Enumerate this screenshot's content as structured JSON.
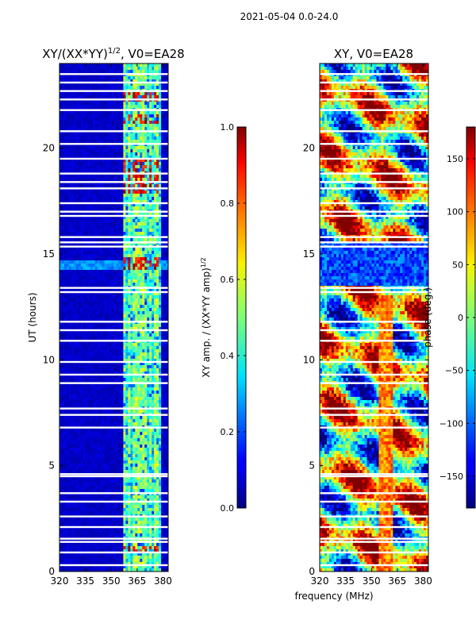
{
  "figure": {
    "suptitle": "2021-05-04 0.0-24.0",
    "xlabel": "frequency (MHz)"
  },
  "chart_data": [
    {
      "type": "heatmap",
      "title": "XY/(XX*YY)",
      "title_exponent": "1/2",
      "title_suffix": ", V0=EA28",
      "xlabel": "frequency (MHz)",
      "ylabel": "UT (hours)",
      "xlim": [
        320,
        383
      ],
      "ylim": [
        0,
        24
      ],
      "xticks": [
        320,
        335,
        350,
        365,
        380
      ],
      "yticks": [
        0,
        5,
        10,
        15,
        20
      ],
      "colorbar": {
        "label": "XY amp. / (XX*YY amp)",
        "label_exponent": "1/2",
        "vmin": 0.0,
        "vmax": 1.0,
        "ticks": [
          "0.0",
          "0.2",
          "0.4",
          "0.6",
          "0.8",
          "1.0"
        ],
        "colormap": "jet"
      }
    },
    {
      "type": "heatmap",
      "title": "XY, V0=EA28",
      "xlabel": "frequency (MHz)",
      "ylabel": "",
      "xlim": [
        320,
        383
      ],
      "ylim": [
        0,
        24
      ],
      "xticks": [
        320,
        335,
        350,
        365,
        380
      ],
      "yticks": [
        0,
        5,
        10,
        15,
        20
      ],
      "colorbar": {
        "label": "phase (deg.)",
        "vmin": -180,
        "vmax": 180,
        "ticks": [
          "−150",
          "−100",
          "−50",
          "0",
          "50",
          "100",
          "150"
        ],
        "tick_values": [
          -150,
          -100,
          -50,
          0,
          50,
          100,
          150
        ],
        "colormap": "jet"
      }
    }
  ],
  "flagged_hours": [
    0.3,
    0.9,
    1.4,
    1.55,
    2.1,
    2.6,
    3.3,
    3.7,
    4.5,
    4.6,
    6.8,
    7.4,
    7.7,
    8.9,
    9.3,
    9.9,
    10.9,
    11.4,
    11.8,
    13.2,
    13.4,
    15.35,
    15.55,
    15.8,
    16.8,
    17.0,
    17.4,
    18.1,
    18.4,
    18.8,
    19.5,
    20.2,
    20.8,
    21.8,
    22.3,
    22.7,
    23.1,
    23.5
  ],
  "rfi_columns_mhz": [
    358,
    360,
    363,
    365,
    368,
    370,
    373,
    375,
    377
  ]
}
